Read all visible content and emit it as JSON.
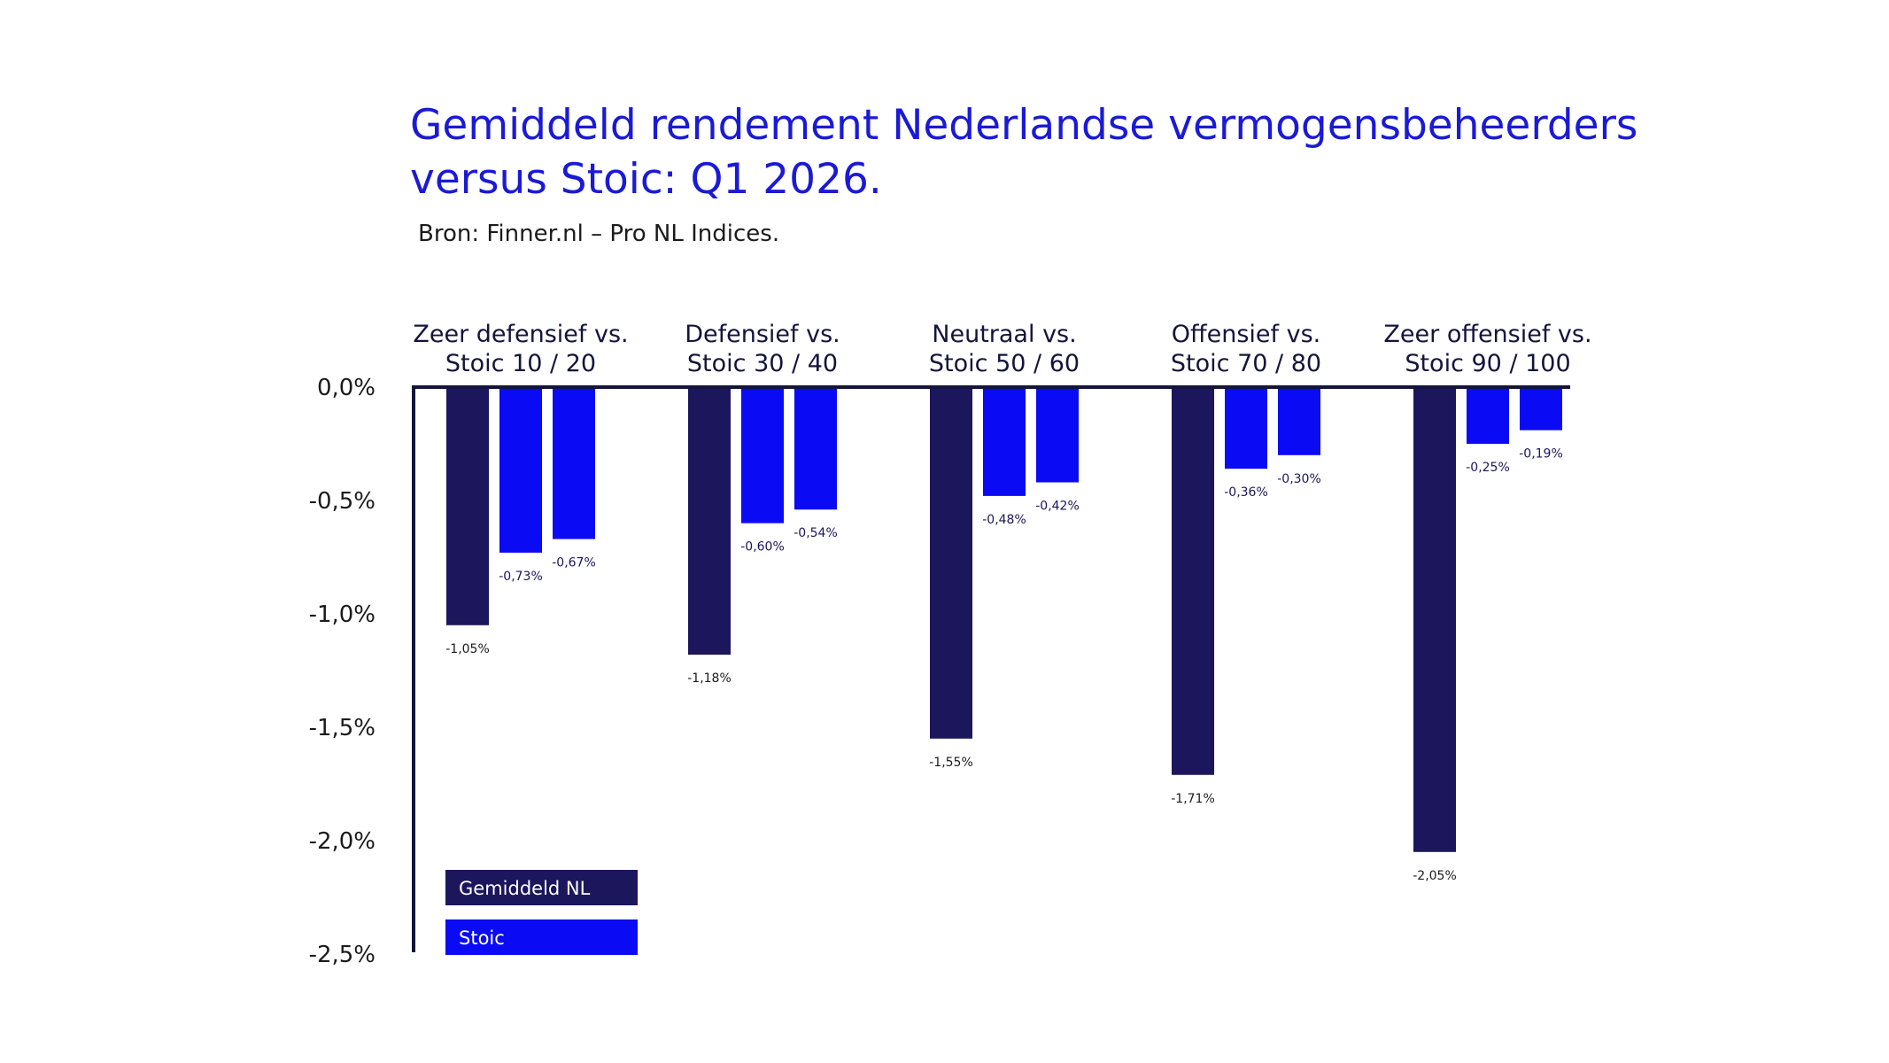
{
  "title_lines": [
    "Gemiddeld rendement Nederlandse vermogensbeheerders",
    "versus Stoic: Q1 2026."
  ],
  "subtitle": "Bron: Finner.nl – Pro NL Indices.",
  "colors": {
    "title": "#1a1ad6",
    "gemiddeld": "#1c165c",
    "stoic": "#0a0af5",
    "axis": "#14143c"
  },
  "chart_data": {
    "type": "bar",
    "title": "Gemiddeld rendement Nederlandse vermogensbeheerders versus Stoic: Q1 2026.",
    "subtitle": "Bron: Finner.nl – Pro NL Indices.",
    "ylim": [
      -2.5,
      0
    ],
    "y_ticks": [
      {
        "value": 0,
        "label": "0,0%"
      },
      {
        "value": -0.5,
        "label": "-0,5%"
      },
      {
        "value": -1.0,
        "label": "-1,0%"
      },
      {
        "value": -1.5,
        "label": "-1,5%"
      },
      {
        "value": -2.0,
        "label": "-2,0%"
      },
      {
        "value": -2.5,
        "label": "-2,5%"
      }
    ],
    "grid": false,
    "legend_position": "bottom-left",
    "legend": [
      {
        "label": "Gemiddeld NL",
        "color_key": "gemiddeld"
      },
      {
        "label": "Stoic",
        "color_key": "stoic"
      }
    ],
    "groups": [
      {
        "label_lines": [
          "Zeer defensief vs.",
          "Stoic 10 / 20"
        ],
        "bars": [
          {
            "series": "Gemiddeld NL",
            "value": -1.05,
            "label": "-1,05%"
          },
          {
            "series": "Stoic",
            "value": -0.73,
            "label": "-0,73%"
          },
          {
            "series": "Stoic",
            "value": -0.67,
            "label": "-0,67%"
          }
        ]
      },
      {
        "label_lines": [
          "Defensief vs.",
          "Stoic 30 / 40"
        ],
        "bars": [
          {
            "series": "Gemiddeld NL",
            "value": -1.18,
            "label": "-1,18%"
          },
          {
            "series": "Stoic",
            "value": -0.6,
            "label": "-0,60%"
          },
          {
            "series": "Stoic",
            "value": -0.54,
            "label": "-0,54%"
          }
        ]
      },
      {
        "label_lines": [
          "Neutraal vs.",
          "Stoic 50 / 60"
        ],
        "bars": [
          {
            "series": "Gemiddeld NL",
            "value": -1.55,
            "label": "-1,55%"
          },
          {
            "series": "Stoic",
            "value": -0.48,
            "label": "-0,48%"
          },
          {
            "series": "Stoic",
            "value": -0.42,
            "label": "-0,42%"
          }
        ]
      },
      {
        "label_lines": [
          "Offensief vs.",
          "Stoic 70 / 80"
        ],
        "bars": [
          {
            "series": "Gemiddeld NL",
            "value": -1.71,
            "label": "-1,71%"
          },
          {
            "series": "Stoic",
            "value": -0.36,
            "label": "-0,36%"
          },
          {
            "series": "Stoic",
            "value": -0.3,
            "label": "-0,30%"
          }
        ]
      },
      {
        "label_lines": [
          "Zeer offensief vs.",
          "Stoic 90 / 100"
        ],
        "bars": [
          {
            "series": "Gemiddeld NL",
            "value": -2.05,
            "label": "-2,05%"
          },
          {
            "series": "Stoic",
            "value": -0.25,
            "label": "-0,25%"
          },
          {
            "series": "Stoic",
            "value": -0.19,
            "label": "-0,19%"
          }
        ]
      }
    ]
  }
}
